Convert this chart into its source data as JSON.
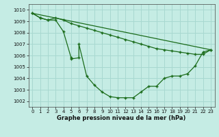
{
  "xlabel": "Graphe pression niveau de la mer (hPa)",
  "background_color": "#c5ece4",
  "grid_color": "#a8d8d0",
  "line_color": "#1a6b1a",
  "xlim": [
    -0.5,
    23.5
  ],
  "ylim": [
    1001.5,
    1010.5
  ],
  "yticks": [
    1002,
    1003,
    1004,
    1005,
    1006,
    1007,
    1008,
    1009,
    1010
  ],
  "xticks": [
    0,
    1,
    2,
    3,
    4,
    5,
    6,
    7,
    8,
    9,
    10,
    11,
    12,
    13,
    14,
    15,
    16,
    17,
    18,
    19,
    20,
    21,
    22,
    23
  ],
  "line1_x": [
    0,
    1,
    2,
    3,
    4,
    5,
    5,
    6,
    6,
    7,
    8,
    9,
    10,
    11,
    12,
    13,
    14,
    15,
    16,
    17,
    18,
    19,
    20,
    21,
    22,
    23
  ],
  "line1_y": [
    1009.7,
    1009.3,
    1009.1,
    1009.1,
    1008.1,
    1005.8,
    1005.7,
    1005.8,
    1007.0,
    1004.2,
    1003.4,
    1002.8,
    1002.4,
    1002.3,
    1002.3,
    1002.3,
    1002.8,
    1003.3,
    1003.3,
    1004.0,
    1004.2,
    1004.2,
    1004.4,
    1005.1,
    1006.3,
    1006.5
  ],
  "line2_x": [
    0,
    1,
    2,
    3,
    4,
    5,
    6,
    7,
    8,
    9,
    10,
    11,
    12,
    13,
    14,
    15,
    16,
    17,
    18,
    19,
    20,
    21,
    22,
    23
  ],
  "line2_y": [
    1009.7,
    1009.3,
    1009.1,
    1009.3,
    1009.1,
    1008.8,
    1008.6,
    1008.4,
    1008.2,
    1008.0,
    1007.8,
    1007.6,
    1007.4,
    1007.2,
    1007.0,
    1006.8,
    1006.6,
    1006.5,
    1006.4,
    1006.3,
    1006.2,
    1006.1,
    1006.1,
    1006.5
  ],
  "line3_x": [
    0,
    23
  ],
  "line3_y": [
    1009.7,
    1006.5
  ],
  "ytick_labels": [
    "1002",
    "1003",
    "1004",
    "1005",
    "1006",
    "1007",
    "1008",
    "1009",
    "1010"
  ],
  "xlabel_fontsize": 6.0,
  "tick_fontsize": 5.0
}
